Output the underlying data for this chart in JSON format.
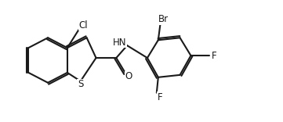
{
  "background_color": "#ffffff",
  "line_color": "#1a1a1a",
  "line_width": 1.5,
  "font_size": 8.5,
  "figsize": [
    3.61,
    1.56
  ],
  "dpi": 100,
  "xlim": [
    0,
    3.61
  ],
  "ylim": [
    0,
    1.56
  ]
}
